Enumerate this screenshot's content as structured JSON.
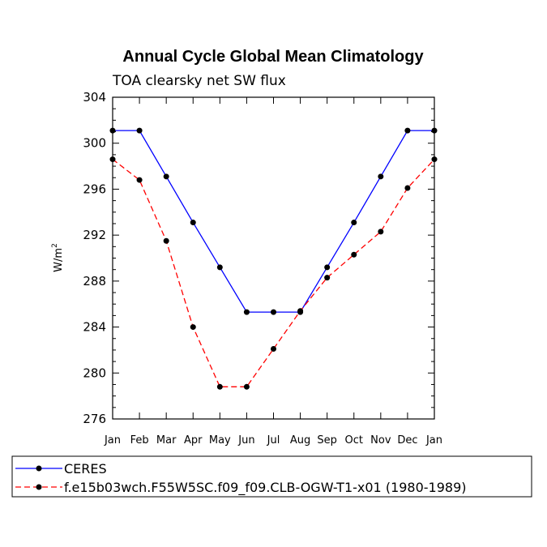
{
  "chart_data": {
    "type": "line",
    "title": "Annual Cycle Global Mean Climatology",
    "subtitle": "TOA clearsky net SW flux",
    "xlabel": "",
    "ylabel": "W/m",
    "ylabel_superscript": "2",
    "categories": [
      "Jan",
      "Feb",
      "Mar",
      "Apr",
      "May",
      "Jun",
      "Jul",
      "Aug",
      "Sep",
      "Oct",
      "Nov",
      "Dec",
      "Jan"
    ],
    "ylim": [
      276,
      304
    ],
    "yticks": [
      "276",
      "280",
      "284",
      "288",
      "292",
      "296",
      "300",
      "304"
    ],
    "series": [
      {
        "name": "CERES",
        "color": "#0000ff",
        "dash": "solid",
        "values": [
          301.1,
          301.1,
          297.1,
          293.1,
          289.2,
          285.3,
          285.3,
          285.3,
          289.2,
          293.1,
          297.1,
          301.1,
          301.1
        ]
      },
      {
        "name": "f.e15b03wch.F55W5SC.f09_f09.CLB-OGW-T1-x01 (1980-1989)",
        "color": "#ff0000",
        "dash": "dashed",
        "values": [
          298.6,
          296.8,
          291.5,
          284.0,
          278.8,
          278.8,
          282.1,
          285.4,
          288.3,
          290.3,
          292.3,
          296.1,
          298.6
        ]
      }
    ]
  }
}
